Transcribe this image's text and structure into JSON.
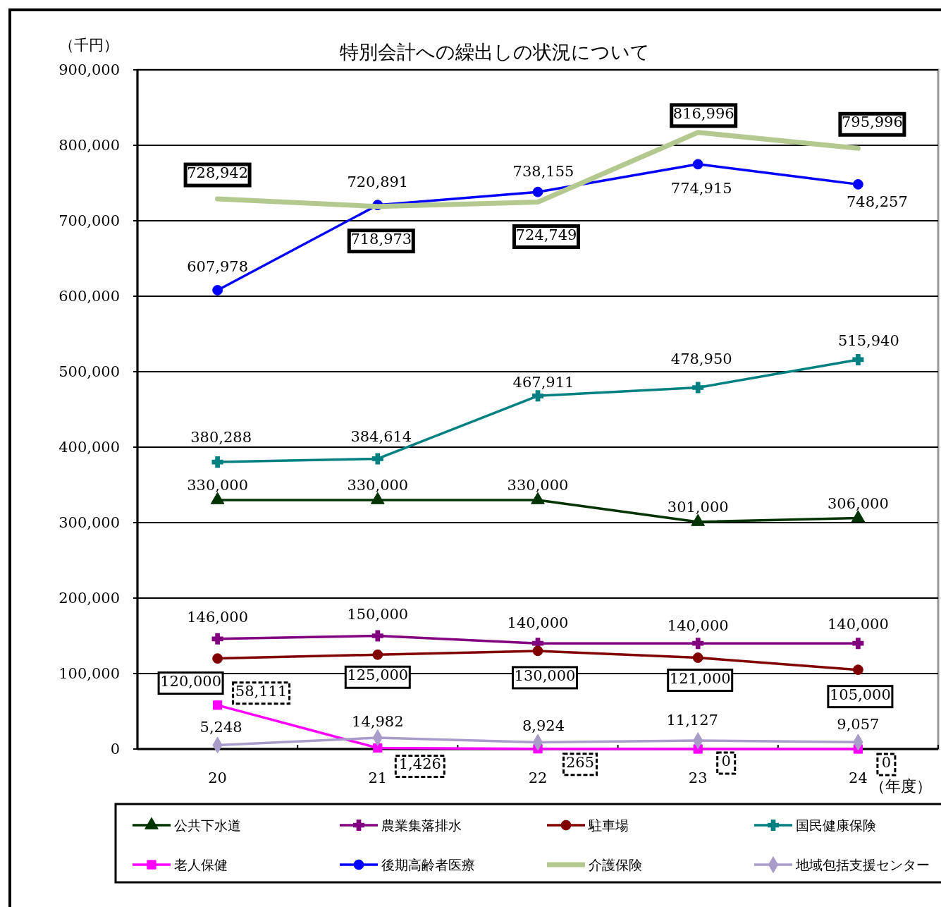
{
  "chart_data": {
    "type": "line",
    "title": "特別会計への繰出しの状況について",
    "ylabel": "（千円）",
    "xlabel": "（年度）",
    "categories": [
      "20",
      "21",
      "22",
      "23",
      "24"
    ],
    "ylim": [
      0,
      900000
    ],
    "yticks": [
      {
        "value": 0,
        "label": "0"
      },
      {
        "value": 100000,
        "label": "100,000"
      },
      {
        "value": 200000,
        "label": "200,000"
      },
      {
        "value": 300000,
        "label": "300,000"
      },
      {
        "value": 400000,
        "label": "400,000"
      },
      {
        "value": 500000,
        "label": "500,000"
      },
      {
        "value": 600000,
        "label": "600,000"
      },
      {
        "value": 700000,
        "label": "700,000"
      },
      {
        "value": 800000,
        "label": "800,000"
      },
      {
        "value": 900000,
        "label": "900,000"
      }
    ],
    "grid": "y",
    "legend": "bottom",
    "series": [
      {
        "name": "公共下水道",
        "color": "#003300",
        "marker": "triangle",
        "values": [
          330000,
          330000,
          330000,
          301000,
          306000
        ],
        "value_labels": [
          "330,000",
          "330,000",
          "330,000",
          "301,000",
          "306,000"
        ]
      },
      {
        "name": "農業集落排水",
        "color": "#800080",
        "marker": "cross",
        "values": [
          146000,
          150000,
          140000,
          140000,
          140000
        ],
        "value_labels": [
          "146,000",
          "150,000",
          "140,000",
          "140,000",
          "140,000"
        ]
      },
      {
        "name": "駐車場",
        "color": "#800000",
        "marker": "circle",
        "values": [
          120000,
          125000,
          130000,
          121000,
          105000
        ],
        "value_labels": [
          "120,000",
          "125,000",
          "130,000",
          "121,000",
          "105,000"
        ]
      },
      {
        "name": "国民健康保険",
        "color": "#008080",
        "marker": "cross",
        "values": [
          380288,
          384614,
          467911,
          478950,
          515940
        ],
        "value_labels": [
          "380,288",
          "384,614",
          "467,911",
          "478,950",
          "515,940"
        ]
      },
      {
        "name": "老人保健",
        "color": "#ff00ff",
        "marker": "square",
        "values": [
          58111,
          1426,
          265,
          0,
          0
        ],
        "value_labels": [
          "58,111",
          "1,426",
          "265",
          "0",
          "0"
        ]
      },
      {
        "name": "後期高齢者医療",
        "color": "#0000ff",
        "marker": "circle",
        "values": [
          607978,
          720891,
          738155,
          774915,
          748257
        ],
        "value_labels": [
          "607,978",
          "720,891",
          "738,155",
          "774,915",
          "748,257"
        ]
      },
      {
        "name": "介護保険",
        "color": "#b3c98f",
        "marker": "none",
        "values": [
          728942,
          718973,
          724749,
          816996,
          795996
        ],
        "value_labels": [
          "728,942",
          "718,973",
          "724,749",
          "816,996",
          "795,996"
        ]
      },
      {
        "name": "地域包括支援センター",
        "color": "#a89cc8",
        "marker": "diamond",
        "values": [
          5248,
          14982,
          8924,
          11127,
          9057
        ],
        "value_labels": [
          "5,248",
          "14,982",
          "8,924",
          "11,127",
          "9,057"
        ]
      }
    ]
  }
}
